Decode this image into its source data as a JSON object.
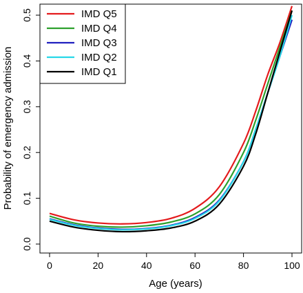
{
  "chart_data": {
    "type": "line",
    "title": "",
    "xlabel": "Age (years)",
    "ylabel": "Probability of emergency admission",
    "xlim": [
      0,
      100
    ],
    "ylim": [
      0,
      0.52
    ],
    "x_ticks": [
      "0",
      "20",
      "40",
      "60",
      "80",
      "100"
    ],
    "y_ticks": [
      "0.0",
      "0.1",
      "0.2",
      "0.3",
      "0.4",
      "0.5"
    ],
    "grid": false,
    "legend_position": "top-left",
    "x": [
      0,
      10,
      20,
      30,
      40,
      50,
      60,
      70,
      80,
      85,
      90,
      95,
      100
    ],
    "series": [
      {
        "name": "IMD Q5",
        "color": "#e41a1c",
        "values": [
          0.067,
          0.053,
          0.046,
          0.044,
          0.047,
          0.056,
          0.078,
          0.125,
          0.22,
          0.29,
          0.37,
          0.44,
          0.52
        ]
      },
      {
        "name": "IMD Q4",
        "color": "#2ca02c",
        "values": [
          0.061,
          0.046,
          0.039,
          0.037,
          0.04,
          0.048,
          0.066,
          0.108,
          0.2,
          0.27,
          0.35,
          0.43,
          0.51
        ]
      },
      {
        "name": "IMD Q3",
        "color": "#1f1fbf",
        "values": [
          0.055,
          0.042,
          0.035,
          0.032,
          0.034,
          0.041,
          0.058,
          0.096,
          0.18,
          0.25,
          0.33,
          0.41,
          0.49
        ]
      },
      {
        "name": "IMD Q2",
        "color": "#26d7e8",
        "values": [
          0.054,
          0.041,
          0.034,
          0.031,
          0.033,
          0.04,
          0.056,
          0.094,
          0.18,
          0.25,
          0.33,
          0.41,
          0.5
        ]
      },
      {
        "name": "IMD Q1",
        "color": "#000000",
        "values": [
          0.05,
          0.037,
          0.03,
          0.027,
          0.029,
          0.035,
          0.05,
          0.087,
          0.17,
          0.24,
          0.33,
          0.42,
          0.51
        ]
      }
    ]
  }
}
